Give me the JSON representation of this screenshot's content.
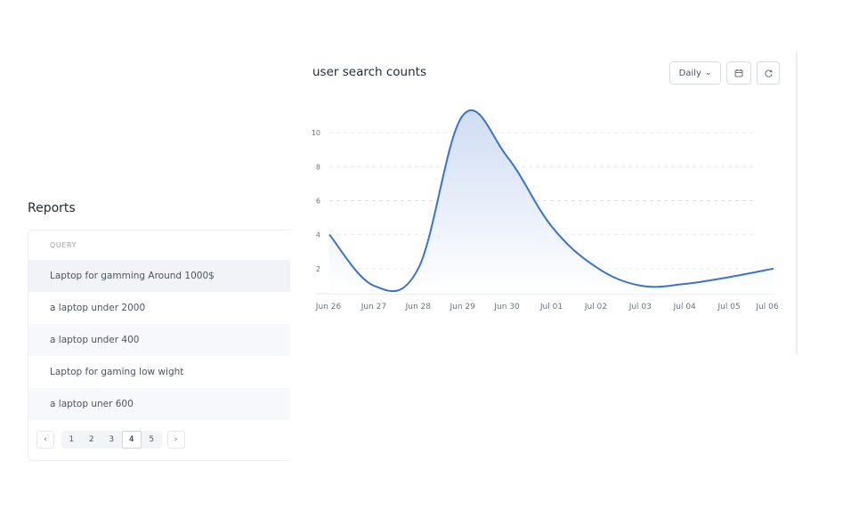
{
  "reports": {
    "title": "Reports",
    "column_header": "QUERY",
    "rows": [
      "Laptop for gamming Around 1000$",
      "a laptop under 2000",
      "a laptop under 400",
      "Laptop for gaming low wight",
      "a laptop uner 600"
    ],
    "pagination": {
      "prev_icon": "chevron-left-icon",
      "next_icon": "chevron-right-icon",
      "pages": [
        "1",
        "2",
        "3",
        "4",
        "5"
      ],
      "current_page": "4"
    }
  },
  "chart_panel": {
    "title": "user search counts",
    "period_select": "Daily",
    "calendar_icon": "calendar-icon",
    "refresh_icon": "refresh-icon"
  },
  "chart_data": {
    "type": "area",
    "title": "user search counts",
    "categories": [
      "Jun 26",
      "Jun 27",
      "Jun 28",
      "Jun 29",
      "Jun 30",
      "Jul 01",
      "Jul 02",
      "Jul 03",
      "Jul 04",
      "Jul 05",
      "Jul 06"
    ],
    "series": [
      {
        "values": [
          4,
          1,
          2,
          11,
          8.6,
          4.5,
          2.1,
          1,
          1.1,
          1.5,
          2
        ]
      }
    ],
    "y_ticks": [
      2,
      4,
      6,
      8,
      10
    ],
    "ylim": [
      0,
      11
    ],
    "grid": true,
    "legend": "none",
    "colors": {
      "line": "#3b73c8",
      "fill_top": "#cfdcf3",
      "fill_bottom": "#ffffff",
      "grid": "#e5e7eb"
    }
  }
}
